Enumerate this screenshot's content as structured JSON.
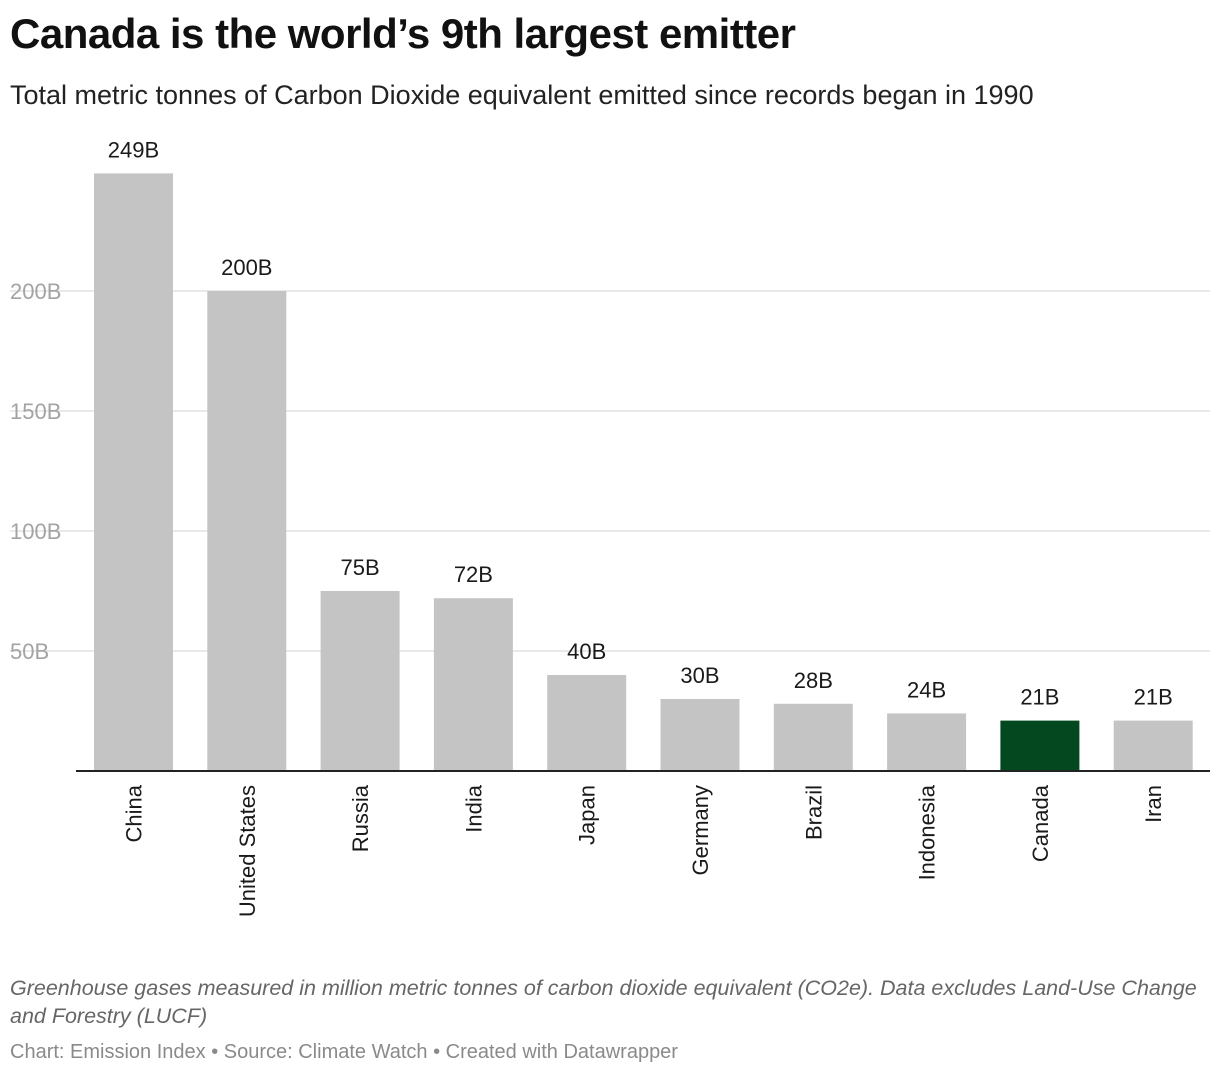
{
  "title": "Canada is the world’s 9th largest emitter",
  "subtitle": "Total metric tonnes of Carbon Dioxide equivalent emitted since records began in 1990",
  "notes": "Greenhouse gases measured in million metric tonnes of carbon dioxide equivalent (CO2e). Data excludes Land-Use Change and Forestry (LUCF)",
  "footer": "Chart: Emission Index • Source: Climate Watch • Created with Datawrapper",
  "colors": {
    "bar": "#c4c4c4",
    "highlight": "#03481e",
    "grid": "#e2e2e2",
    "axis_text": "#a3a3a3"
  },
  "chart_data": {
    "type": "bar",
    "categories": [
      "China",
      "United States",
      "Russia",
      "India",
      "Japan",
      "Germany",
      "Brazil",
      "Indonesia",
      "Canada",
      "Iran"
    ],
    "values": [
      249,
      200,
      75,
      72,
      40,
      30,
      28,
      24,
      21,
      21
    ],
    "value_labels": [
      "249B",
      "200B",
      "75B",
      "72B",
      "40B",
      "30B",
      "28B",
      "24B",
      "21B",
      "21B"
    ],
    "highlight": "Canada",
    "yticks": [
      50,
      100,
      150,
      200
    ],
    "ytick_labels": [
      "50B",
      "100B",
      "150B",
      "200B"
    ],
    "ylim": [
      0,
      249
    ],
    "unit": "billion tonnes CO2e",
    "grid": true,
    "legend": "none"
  }
}
